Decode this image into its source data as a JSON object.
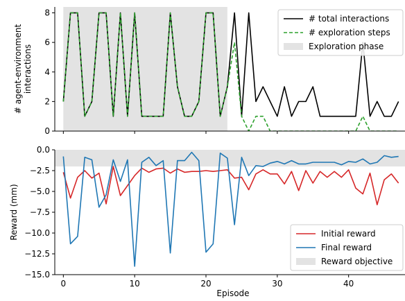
{
  "chart_data": [
    {
      "type": "line",
      "ylabel": "# agent-environment\ninteractions",
      "ylim": [
        0,
        8.4
      ],
      "yticks": [
        0,
        2,
        4,
        6,
        8
      ],
      "xlim": [
        -1.2,
        48.2
      ],
      "shaded_region": {
        "x": [
          0,
          23
        ],
        "label": "Exploration phase",
        "color": "#e3e3e3"
      },
      "legend_position": "top-right",
      "series": [
        {
          "name": "# total interactions",
          "color": "#000000",
          "style": "solid",
          "x": [
            0,
            1,
            2,
            3,
            4,
            5,
            6,
            7,
            8,
            9,
            10,
            11,
            12,
            13,
            14,
            15,
            16,
            17,
            18,
            19,
            20,
            21,
            22,
            23,
            24,
            25,
            26,
            27,
            28,
            29,
            30,
            31,
            32,
            33,
            34,
            35,
            36,
            37,
            38,
            39,
            40,
            41,
            42,
            43,
            44,
            45,
            46,
            47
          ],
          "values": [
            2,
            8,
            8,
            1,
            2,
            8,
            8,
            1,
            8,
            1,
            8,
            1,
            1,
            1,
            1,
            8,
            3,
            1,
            1,
            2,
            8,
            8,
            1,
            3,
            8,
            1,
            8,
            2,
            3,
            2,
            1,
            3,
            1,
            2,
            2,
            3,
            1,
            1,
            1,
            1,
            1,
            1,
            6,
            1,
            2,
            1,
            1,
            2
          ]
        },
        {
          "name": "# exploration steps",
          "color": "#2ca02c",
          "style": "dashed",
          "x": [
            0,
            1,
            2,
            3,
            4,
            5,
            6,
            7,
            8,
            9,
            10,
            11,
            12,
            13,
            14,
            15,
            16,
            17,
            18,
            19,
            20,
            21,
            22,
            23,
            24,
            25,
            26,
            27,
            28,
            29,
            30,
            31,
            32,
            33,
            34,
            35,
            36,
            37,
            38,
            39,
            40,
            41,
            42,
            43,
            44,
            45,
            46,
            47
          ],
          "values": [
            2,
            8,
            8,
            1,
            2,
            8,
            8,
            1,
            8,
            1,
            8,
            1,
            1,
            1,
            1,
            8,
            3,
            1,
            1,
            2,
            8,
            8,
            1,
            3,
            6,
            1,
            0,
            1,
            1,
            0,
            0,
            0,
            0,
            0,
            0,
            0,
            0,
            0,
            0,
            0,
            0,
            0,
            1,
            0,
            0,
            0,
            0,
            0
          ]
        }
      ]
    },
    {
      "type": "line",
      "xlabel": "Episode",
      "ylabel": "Reward (mm)",
      "ylim": [
        -15.0,
        0.0
      ],
      "yticks": [
        0.0,
        -2.5,
        -5.0,
        -7.5,
        -10.0,
        -12.5,
        -15.0
      ],
      "ytick_labels": [
        "0.0",
        "−2.5",
        "−5.0",
        "−7.5",
        "−10.0",
        "−12.5",
        "−15.0"
      ],
      "xlim": [
        -1.2,
        48.2
      ],
      "xticks": [
        0,
        10,
        20,
        30,
        40
      ],
      "shaded_region": {
        "y": [
          -2,
          0
        ],
        "label": "Reward objective",
        "color": "#e3e3e3"
      },
      "legend_position": "bottom-right",
      "series": [
        {
          "name": "Initial reward",
          "color": "#d62728",
          "x": [
            0,
            1,
            2,
            3,
            4,
            5,
            6,
            7,
            8,
            9,
            10,
            11,
            12,
            13,
            14,
            15,
            16,
            17,
            18,
            19,
            20,
            21,
            22,
            23,
            24,
            25,
            26,
            27,
            28,
            29,
            30,
            31,
            32,
            33,
            34,
            35,
            36,
            37,
            38,
            39,
            40,
            41,
            42,
            43,
            44,
            45,
            46,
            47
          ],
          "values": [
            -2.7,
            -5.8,
            -3.3,
            -2.5,
            -3.4,
            -2.8,
            -6.5,
            -2.0,
            -5.5,
            -4.3,
            -3.1,
            -2.2,
            -2.7,
            -2.3,
            -2.2,
            -2.8,
            -2.3,
            -2.7,
            -2.6,
            -2.6,
            -2.5,
            -2.6,
            -2.5,
            -2.4,
            -3.4,
            -3.3,
            -4.8,
            -2.9,
            -2.4,
            -2.9,
            -2.9,
            -4.1,
            -2.6,
            -4.9,
            -2.5,
            -4.0,
            -2.6,
            -3.3,
            -2.6,
            -3.3,
            -2.4,
            -4.6,
            -5.3,
            -2.8,
            -6.6,
            -3.6,
            -2.9,
            -4.0
          ]
        },
        {
          "name": "Final reward",
          "color": "#1f77b4",
          "x": [
            0,
            1,
            2,
            3,
            4,
            5,
            6,
            7,
            8,
            9,
            10,
            11,
            12,
            13,
            14,
            15,
            16,
            17,
            18,
            19,
            20,
            21,
            22,
            23,
            24,
            25,
            26,
            27,
            28,
            29,
            30,
            31,
            32,
            33,
            34,
            35,
            36,
            37,
            38,
            39,
            40,
            41,
            42,
            43,
            44,
            45,
            46,
            47
          ],
          "values": [
            -0.8,
            -11.3,
            -10.4,
            -0.9,
            -1.2,
            -6.9,
            -5.4,
            -1.2,
            -3.8,
            -1.2,
            -14.0,
            -1.5,
            -0.9,
            -1.9,
            -1.3,
            -12.4,
            -1.3,
            -1.3,
            -0.3,
            -1.3,
            -12.3,
            -11.3,
            -0.4,
            -1.0,
            -9.0,
            -0.9,
            -3.1,
            -1.9,
            -2.0,
            -1.6,
            -1.4,
            -1.7,
            -1.3,
            -1.7,
            -1.7,
            -1.5,
            -1.5,
            -1.5,
            -1.5,
            -1.8,
            -1.4,
            -1.5,
            -1.1,
            -1.7,
            -1.5,
            -0.7,
            -0.9,
            -0.8
          ]
        }
      ]
    }
  ]
}
